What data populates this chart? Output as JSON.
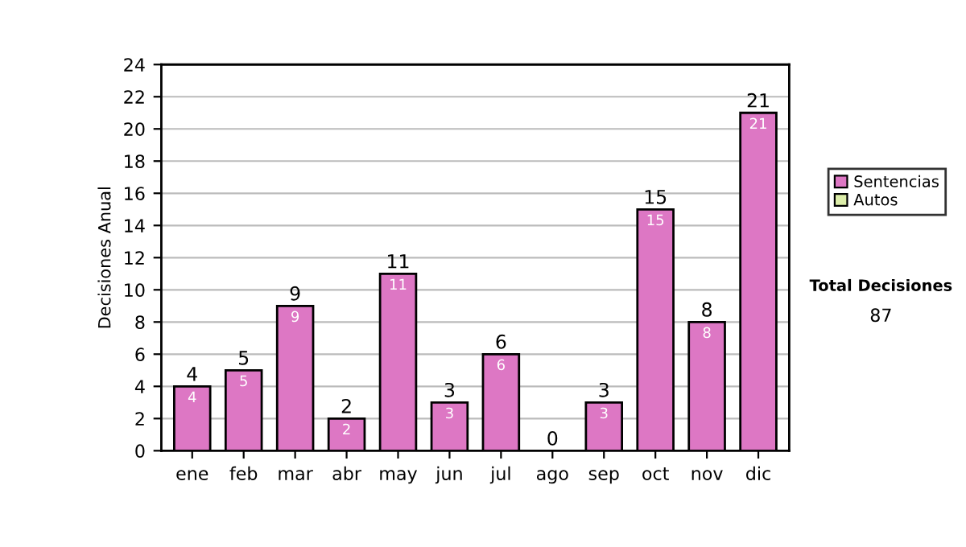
{
  "chart_data": {
    "type": "bar",
    "stacked": true,
    "ylabel": "Decisiones Anual",
    "categories": [
      "ene",
      "feb",
      "mar",
      "abr",
      "may",
      "jun",
      "jul",
      "ago",
      "sep",
      "oct",
      "nov",
      "dic"
    ],
    "series": [
      {
        "name": "Sentencias",
        "color": "#dd77c4",
        "values": [
          4,
          5,
          9,
          2,
          11,
          3,
          6,
          0,
          3,
          15,
          8,
          21
        ],
        "value_labels": [
          "4",
          "5",
          "9",
          "2",
          "11",
          "3",
          "6",
          null,
          "3",
          "15",
          "8",
          "21"
        ]
      },
      {
        "name": "Autos",
        "color": "#ddeeaa",
        "values": [
          0,
          0,
          0,
          0,
          0,
          0,
          0,
          0,
          0,
          0,
          0,
          0
        ]
      }
    ],
    "totals": [
      "4",
      "5",
      "9",
      "2",
      "11",
      "3",
      "6",
      "0",
      "3",
      "15",
      "8",
      "21"
    ],
    "ylim": [
      0,
      24
    ],
    "yticks": [
      0,
      2,
      4,
      6,
      8,
      10,
      12,
      14,
      16,
      18,
      20,
      22,
      24
    ],
    "grid": "y",
    "legend": "right",
    "annotations": [
      "Total Decisiones",
      "87"
    ]
  }
}
